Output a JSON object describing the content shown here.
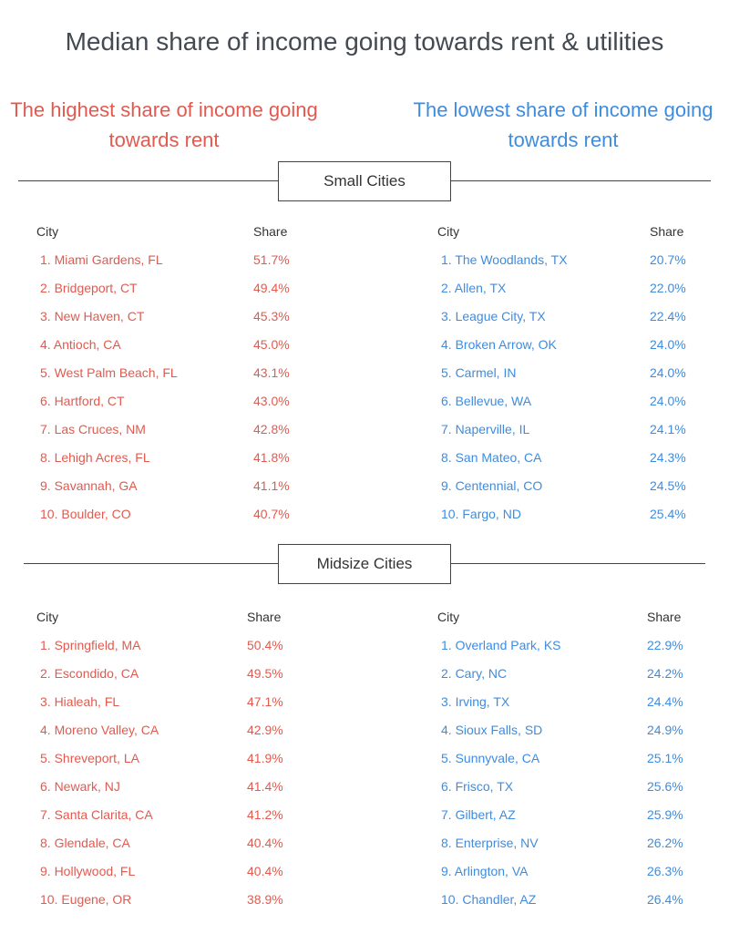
{
  "title": "Median share of income going towards rent & utilities",
  "highest_heading": "The highest share of income going towards rent",
  "lowest_heading": "The lowest share of income going towards rent",
  "column_headers": {
    "city": "City",
    "share": "Share"
  },
  "colors": {
    "highest": "#e25a4f",
    "lowest": "#3e8ce0"
  },
  "chart_data": {
    "type": "table",
    "title": "Median share of income going towards rent & utilities",
    "sections": [
      {
        "name": "Small Cities",
        "highest": [
          {
            "city": "1. Miami Gardens, FL",
            "share": "51.7%"
          },
          {
            "city": "2. Bridgeport, CT",
            "share": "49.4%"
          },
          {
            "city": "3. New Haven, CT",
            "share": "45.3%"
          },
          {
            "city": "4. Antioch, CA",
            "share": "45.0%"
          },
          {
            "city": "5. West Palm Beach, FL",
            "share": "43.1%"
          },
          {
            "city": "6. Hartford, CT",
            "share": "43.0%"
          },
          {
            "city": "7. Las Cruces, NM",
            "share": "42.8%"
          },
          {
            "city": "8. Lehigh Acres, FL",
            "share": "41.8%"
          },
          {
            "city": "9. Savannah, GA",
            "share": "41.1%"
          },
          {
            "city": "10. Boulder, CO",
            "share": "40.7%"
          }
        ],
        "lowest": [
          {
            "city": "1. The Woodlands, TX",
            "share": "20.7%"
          },
          {
            "city": "2. Allen, TX",
            "share": "22.0%"
          },
          {
            "city": "3. League City, TX",
            "share": "22.4%"
          },
          {
            "city": "4. Broken Arrow, OK",
            "share": "24.0%"
          },
          {
            "city": "5. Carmel, IN",
            "share": "24.0%"
          },
          {
            "city": "6. Bellevue, WA",
            "share": "24.0%"
          },
          {
            "city": "7. Naperville, IL",
            "share": "24.1%"
          },
          {
            "city": "8. San Mateo, CA",
            "share": "24.3%"
          },
          {
            "city": "9. Centennial, CO",
            "share": "24.5%"
          },
          {
            "city": "10. Fargo, ND",
            "share": "25.4%"
          }
        ]
      },
      {
        "name": "Midsize Cities",
        "highest": [
          {
            "city": "1. Springfield, MA",
            "share": "50.4%"
          },
          {
            "city": "2. Escondido, CA",
            "share": "49.5%"
          },
          {
            "city": "3. Hialeah, FL",
            "share": "47.1%"
          },
          {
            "city": "4. Moreno Valley, CA",
            "share": "42.9%"
          },
          {
            "city": "5. Shreveport, LA",
            "share": "41.9%"
          },
          {
            "city": "6. Newark, NJ",
            "share": "41.4%"
          },
          {
            "city": "7. Santa Clarita, CA",
            "share": "41.2%"
          },
          {
            "city": "8. Glendale, CA",
            "share": "40.4%"
          },
          {
            "city": "9. Hollywood, FL",
            "share": "40.4%"
          },
          {
            "city": "10. Eugene, OR",
            "share": "38.9%"
          }
        ],
        "lowest": [
          {
            "city": "1. Overland Park, KS",
            "share": "22.9%"
          },
          {
            "city": "2. Cary, NC",
            "share": "24.2%"
          },
          {
            "city": "3. Irving, TX",
            "share": "24.4%"
          },
          {
            "city": "4. Sioux Falls, SD",
            "share": "24.9%"
          },
          {
            "city": "5. Sunnyvale, CA",
            "share": "25.1%"
          },
          {
            "city": "6. Frisco, TX",
            "share": "25.6%"
          },
          {
            "city": "7. Gilbert, AZ",
            "share": "25.9%"
          },
          {
            "city": "8. Enterprise, NV",
            "share": "26.2%"
          },
          {
            "city": "9. Arlington, VA",
            "share": "26.3%"
          },
          {
            "city": "10. Chandler, AZ",
            "share": "26.4%"
          }
        ]
      }
    ]
  }
}
